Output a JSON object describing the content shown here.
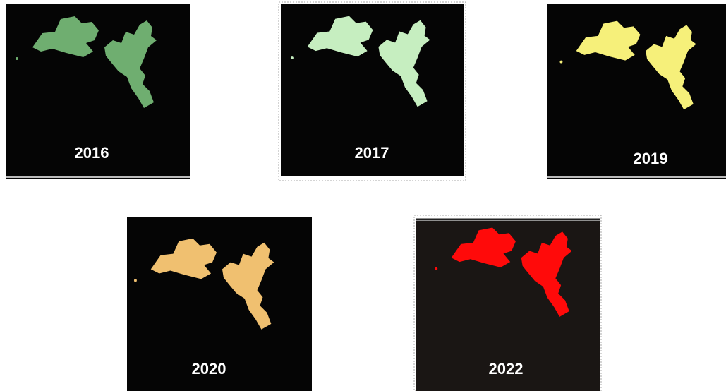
{
  "panels": [
    {
      "label": "2016"
    },
    {
      "label": "2017"
    },
    {
      "label": "2019"
    },
    {
      "label": "2020"
    },
    {
      "label": "2022"
    }
  ]
}
